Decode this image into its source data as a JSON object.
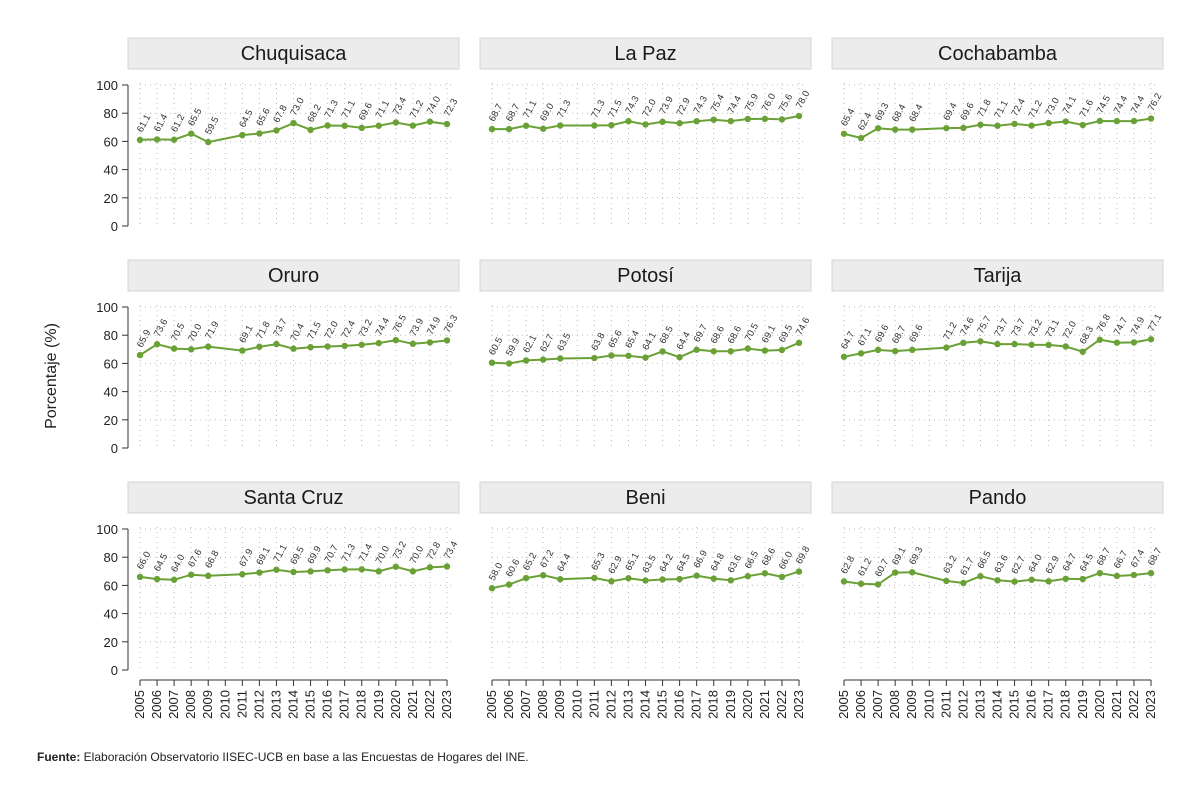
{
  "chart_data": {
    "type": "line",
    "ylabel": "Porcentaje (%)",
    "ylim": [
      0,
      100
    ],
    "yticks": [
      0,
      20,
      40,
      60,
      80,
      100
    ],
    "x": [
      2005,
      2006,
      2007,
      2008,
      2009,
      2010,
      2011,
      2012,
      2013,
      2014,
      2015,
      2016,
      2017,
      2018,
      2019,
      2020,
      2021,
      2022,
      2023
    ],
    "grid": true,
    "colors": {
      "line": "#6aa136",
      "strip": "#ececec",
      "grid": "#bdbdbd"
    },
    "panels": [
      {
        "title": "Chuquisaca",
        "values": [
          61.1,
          61.4,
          61.2,
          65.5,
          59.5,
          null,
          64.5,
          65.6,
          67.8,
          73.0,
          68.2,
          71.3,
          71.1,
          69.6,
          71.1,
          73.4,
          71.2,
          74.0,
          72.3
        ]
      },
      {
        "title": "La Paz",
        "values": [
          68.7,
          68.7,
          71.1,
          69.0,
          71.3,
          null,
          71.3,
          71.5,
          74.3,
          72.0,
          73.9,
          72.9,
          74.3,
          75.4,
          74.4,
          75.9,
          76.0,
          75.6,
          78.0
        ]
      },
      {
        "title": "Cochabamba",
        "values": [
          65.4,
          62.4,
          69.3,
          68.4,
          68.4,
          null,
          69.4,
          69.6,
          71.8,
          71.1,
          72.4,
          71.2,
          73.0,
          74.1,
          71.6,
          74.5,
          74.4,
          74.4,
          76.2
        ]
      },
      {
        "title": "Oruro",
        "values": [
          65.9,
          73.6,
          70.5,
          70.0,
          71.9,
          null,
          69.1,
          71.8,
          73.7,
          70.4,
          71.5,
          72.0,
          72.4,
          73.2,
          74.4,
          76.5,
          73.9,
          74.9,
          76.3
        ]
      },
      {
        "title": "Potosí",
        "values": [
          60.5,
          59.9,
          62.1,
          62.7,
          63.5,
          null,
          63.8,
          65.6,
          65.4,
          64.1,
          68.5,
          64.4,
          69.7,
          68.6,
          68.6,
          70.5,
          69.1,
          69.5,
          74.6
        ]
      },
      {
        "title": "Tarija",
        "values": [
          64.7,
          67.1,
          69.6,
          68.7,
          69.6,
          null,
          71.2,
          74.6,
          75.7,
          73.7,
          73.7,
          73.2,
          73.1,
          72.0,
          68.3,
          76.8,
          74.7,
          74.9,
          77.1
        ]
      },
      {
        "title": "Santa Cruz",
        "values": [
          66.0,
          64.5,
          64.0,
          67.6,
          66.8,
          null,
          67.9,
          69.1,
          71.1,
          69.5,
          69.9,
          70.7,
          71.3,
          71.4,
          70.0,
          73.2,
          70.0,
          72.8,
          73.4
        ]
      },
      {
        "title": "Beni",
        "values": [
          58.0,
          60.6,
          65.2,
          67.2,
          64.4,
          null,
          65.3,
          62.9,
          65.1,
          63.5,
          64.2,
          64.5,
          66.9,
          64.8,
          63.6,
          66.5,
          68.6,
          66.0,
          69.8
        ]
      },
      {
        "title": "Pando",
        "values": [
          62.8,
          61.2,
          60.7,
          69.1,
          69.3,
          null,
          63.2,
          61.7,
          66.5,
          63.6,
          62.7,
          64.0,
          62.9,
          64.7,
          64.5,
          68.7,
          66.7,
          67.4,
          68.7
        ]
      }
    ]
  },
  "footnote": {
    "label": "Fuente:",
    "text": " Elaboración Observatorio IISEC-UCB en base a las Encuestas de Hogares del INE."
  }
}
